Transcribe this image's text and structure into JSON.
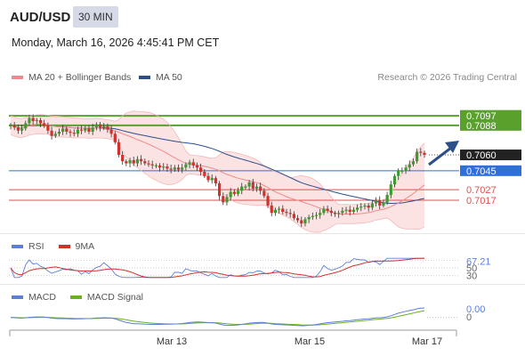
{
  "header": {
    "symbol": "AUD/USD",
    "timeframe": "30 MIN",
    "datetime": "Monday, March 16, 2026 4:45:41 PM CET"
  },
  "legend": {
    "ma20": "MA 20 + Bollinger Bands",
    "ma50": "MA 50",
    "copyright": "Research © 2026 Trading Central",
    "rsi": "RSI",
    "rsi_ma": "9MA",
    "macd": "MACD",
    "macd_signal": "MACD Signal"
  },
  "colors": {
    "ma20": "#f08a8a",
    "ma50": "#2c4f8c",
    "bollinger_fill": "#fbe3e3",
    "support_resistance_green": "#5aa02c",
    "pivot_blue": "#2e6fd8",
    "support_red": "#d9534f",
    "bull_candle": "#3d9b2e",
    "bear_candle": "#d0312d",
    "last_price_bg": "#222222",
    "rsi": "#5b7fd6",
    "rsi_ma": "#d0312d",
    "macd": "#5b7fd6",
    "macd_signal": "#6ab024"
  },
  "chart_data": [
    {
      "type": "candlestick",
      "ylim": [
        0.699,
        0.7125
      ],
      "x_tick_labels": [
        "Mar 13",
        "Mar 15",
        "Mar 17"
      ],
      "price_levels": [
        {
          "label": "0.7097",
          "value": 0.7097,
          "kind": "resistance",
          "color": "#5aa02c"
        },
        {
          "label": "0.7088",
          "value": 0.7088,
          "kind": "resistance",
          "color": "#5aa02c"
        },
        {
          "label": "0.7060",
          "value": 0.706,
          "kind": "last",
          "color": "#222222"
        },
        {
          "label": "0.7045",
          "value": 0.7045,
          "kind": "pivot",
          "color": "#2e6fd8"
        },
        {
          "label": "0.7027",
          "value": 0.7027,
          "kind": "support",
          "color": "#d9534f"
        },
        {
          "label": "0.7017",
          "value": 0.7017,
          "kind": "support",
          "color": "#d9534f"
        }
      ],
      "close": [
        0.7088,
        0.7086,
        0.7083,
        0.7085,
        0.709,
        0.7095,
        0.7092,
        0.7093,
        0.709,
        0.7088,
        0.7083,
        0.7078,
        0.708,
        0.7082,
        0.7085,
        0.7082,
        0.7081,
        0.708,
        0.7084,
        0.7083,
        0.7085,
        0.7082,
        0.7086,
        0.7089,
        0.7086,
        0.7087,
        0.7084,
        0.708,
        0.7072,
        0.706,
        0.7054,
        0.7052,
        0.7055,
        0.7052,
        0.7056,
        0.7054,
        0.7052,
        0.7051,
        0.705,
        0.705,
        0.7048,
        0.7049,
        0.7047,
        0.7046,
        0.7048,
        0.7046,
        0.7048,
        0.7051,
        0.7053,
        0.705,
        0.7048,
        0.7044,
        0.704,
        0.7036,
        0.7038,
        0.7033,
        0.7021,
        0.7015,
        0.702,
        0.7025,
        0.7023,
        0.7026,
        0.703,
        0.703,
        0.7034,
        0.7028,
        0.703,
        0.7026,
        0.7021,
        0.7012,
        0.7005,
        0.7008,
        0.7009,
        0.7006,
        0.7005,
        0.7004,
        0.7,
        0.6998,
        0.6995,
        0.6999,
        0.7001,
        0.7002,
        0.7003,
        0.7005,
        0.7009,
        0.7007,
        0.7005,
        0.7004,
        0.7005,
        0.7007,
        0.7008,
        0.7006,
        0.7008,
        0.701,
        0.7011,
        0.7012,
        0.701,
        0.7014,
        0.7017,
        0.7012,
        0.7015,
        0.7022,
        0.7032,
        0.704,
        0.7045,
        0.7045,
        0.7048,
        0.7051,
        0.7054,
        0.7063,
        0.7062,
        0.706
      ]
    },
    {
      "type": "line",
      "name": "RSI",
      "ylim": [
        20,
        80
      ],
      "tick_labels": [
        "67.21",
        "50",
        "30"
      ],
      "tick_values": [
        67.21,
        50,
        30
      ]
    },
    {
      "type": "line",
      "name": "MACD",
      "tick_labels": [
        "0.00",
        "0"
      ],
      "tick_values": [
        0,
        0
      ]
    }
  ]
}
